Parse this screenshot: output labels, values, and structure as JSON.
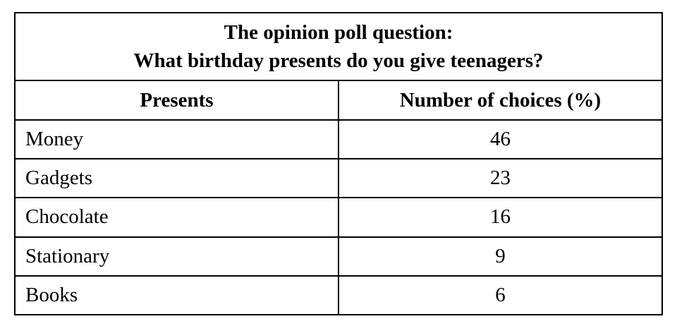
{
  "table": {
    "title_line1": "The opinion poll question:",
    "title_line2": "What birthday presents do you give teenagers?",
    "columns": [
      "Presents",
      "Number of choices (%)"
    ],
    "rows": [
      {
        "present": "Money",
        "choices": "46"
      },
      {
        "present": "Gadgets",
        "choices": "23"
      },
      {
        "present": "Chocolate",
        "choices": "16"
      },
      {
        "present": "Stationary",
        "choices": "9"
      },
      {
        "present": "Books",
        "choices": "6"
      }
    ]
  },
  "colors": {
    "border": "#000000",
    "text": "#000000",
    "background": "#ffffff"
  },
  "chart_data": {
    "type": "table",
    "title": "The opinion poll question: What birthday presents do you give teenagers?",
    "columns": [
      "Presents",
      "Number of choices (%)"
    ],
    "categories": [
      "Money",
      "Gadgets",
      "Chocolate",
      "Stationary",
      "Books"
    ],
    "values": [
      46,
      23,
      16,
      9,
      6
    ],
    "value_unit": "%",
    "layout": {
      "title_position": "spanning-header",
      "value_alignment": "center",
      "category_alignment": "left"
    }
  }
}
